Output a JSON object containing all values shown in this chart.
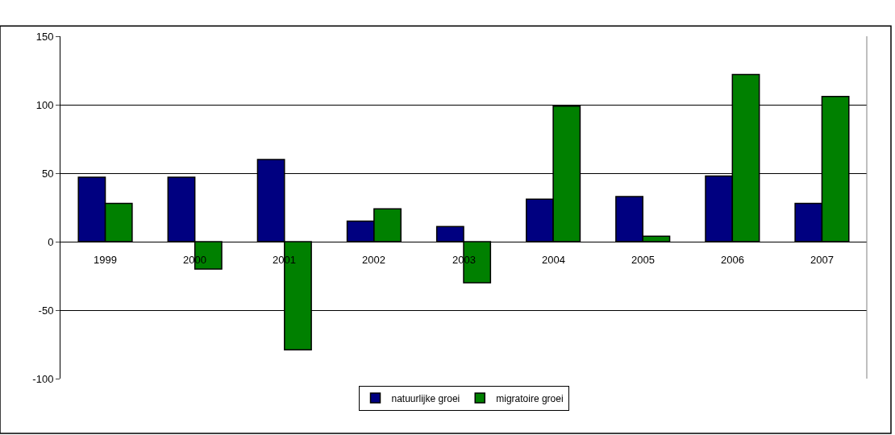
{
  "chart_data": {
    "type": "bar",
    "categories": [
      "1999",
      "2000",
      "2001",
      "2002",
      "2003",
      "2004",
      "2005",
      "2006",
      "2007"
    ],
    "series": [
      {
        "name": "natuurlijke groei",
        "color": "#000080",
        "values": [
          47,
          47,
          60,
          15,
          11,
          31,
          33,
          48,
          28
        ]
      },
      {
        "name": "migratoire groei",
        "color": "#008000",
        "values": [
          28,
          -20,
          -79,
          24,
          -30,
          99,
          4,
          122,
          106
        ]
      }
    ],
    "ylim": [
      -100,
      150
    ],
    "yticks": [
      -100,
      -50,
      0,
      50,
      100,
      150
    ],
    "grid": "y",
    "legend": "bottom"
  }
}
